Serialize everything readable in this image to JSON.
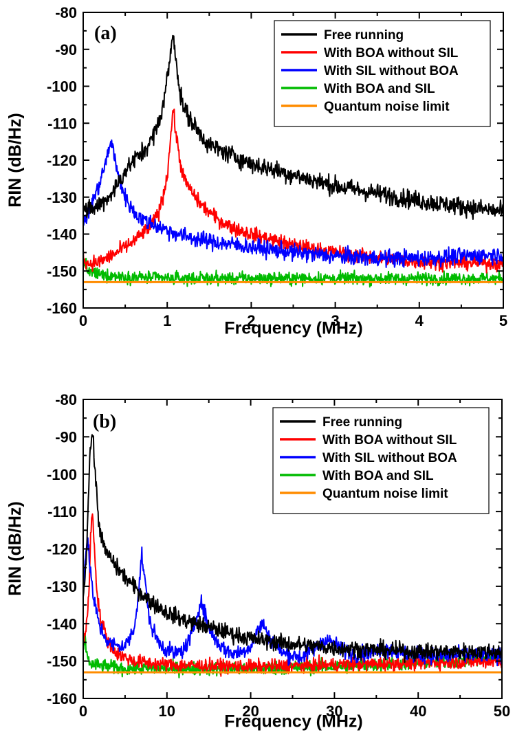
{
  "chart_data": [
    {
      "id": "a",
      "type": "line",
      "panel_label": "(a)",
      "xlabel": "Frequency (MHz)",
      "ylabel": "RIN (dB/Hz)",
      "xlim": [
        0,
        5
      ],
      "ylim": [
        -160,
        -80
      ],
      "xticks": [
        0,
        1,
        2,
        3,
        4,
        5
      ],
      "yticks": [
        -80,
        -90,
        -100,
        -110,
        -120,
        -130,
        -140,
        -150,
        -160
      ],
      "grid": false,
      "legend_position": "top-right",
      "series": [
        {
          "name": "Free running",
          "color": "#000000",
          "noise": 1.8,
          "points": [
            [
              0.0,
              -132
            ],
            [
              0.05,
              -134
            ],
            [
              0.1,
              -133.5
            ],
            [
              0.2,
              -132
            ],
            [
              0.3,
              -130
            ],
            [
              0.4,
              -127
            ],
            [
              0.5,
              -123
            ],
            [
              0.6,
              -120
            ],
            [
              0.7,
              -118
            ],
            [
              0.8,
              -115
            ],
            [
              0.9,
              -110
            ],
            [
              0.95,
              -105
            ],
            [
              1.0,
              -98
            ],
            [
              1.04,
              -91
            ],
            [
              1.07,
              -86
            ],
            [
              1.1,
              -91
            ],
            [
              1.15,
              -102
            ],
            [
              1.2,
              -106
            ],
            [
              1.3,
              -110
            ],
            [
              1.4,
              -113
            ],
            [
              1.5,
              -116
            ],
            [
              1.7,
              -118
            ],
            [
              2.0,
              -121
            ],
            [
              2.5,
              -124
            ],
            [
              3.0,
              -127
            ],
            [
              3.5,
              -129
            ],
            [
              4.0,
              -131
            ],
            [
              4.5,
              -132.5
            ],
            [
              5.0,
              -134
            ]
          ]
        },
        {
          "name": "With BOA without SIL",
          "color": "#ff0000",
          "noise": 1.4,
          "points": [
            [
              0.0,
              -146
            ],
            [
              0.05,
              -148
            ],
            [
              0.2,
              -147.5
            ],
            [
              0.4,
              -145
            ],
            [
              0.6,
              -142
            ],
            [
              0.8,
              -138
            ],
            [
              0.9,
              -134
            ],
            [
              0.95,
              -130
            ],
            [
              1.0,
              -124
            ],
            [
              1.04,
              -114
            ],
            [
              1.07,
              -106
            ],
            [
              1.1,
              -112
            ],
            [
              1.15,
              -120
            ],
            [
              1.2,
              -125
            ],
            [
              1.3,
              -129
            ],
            [
              1.4,
              -132
            ],
            [
              1.6,
              -136
            ],
            [
              1.8,
              -138.5
            ],
            [
              2.0,
              -140
            ],
            [
              2.5,
              -143
            ],
            [
              3.0,
              -145
            ],
            [
              3.5,
              -146.5
            ],
            [
              4.0,
              -147.5
            ],
            [
              5.0,
              -148
            ]
          ]
        },
        {
          "name": "With SIL without BOA",
          "color": "#0000ff",
          "noise": 1.6,
          "points": [
            [
              0.0,
              -136
            ],
            [
              0.05,
              -135
            ],
            [
              0.1,
              -132
            ],
            [
              0.2,
              -126
            ],
            [
              0.3,
              -118
            ],
            [
              0.33,
              -114.5
            ],
            [
              0.36,
              -117
            ],
            [
              0.4,
              -123
            ],
            [
              0.5,
              -130
            ],
            [
              0.6,
              -134
            ],
            [
              0.7,
              -136
            ],
            [
              0.8,
              -137
            ],
            [
              1.0,
              -139
            ],
            [
              1.2,
              -140.5
            ],
            [
              1.5,
              -142
            ],
            [
              2.0,
              -143.5
            ],
            [
              2.5,
              -145
            ],
            [
              3.0,
              -146
            ],
            [
              3.5,
              -146.5
            ],
            [
              4.0,
              -146.5
            ],
            [
              4.5,
              -146
            ],
            [
              5.0,
              -145.5
            ]
          ]
        },
        {
          "name": "With BOA and SIL",
          "color": "#00bb00",
          "noise": 1.2,
          "points": [
            [
              0.0,
              -149
            ],
            [
              0.02,
              -147
            ],
            [
              0.05,
              -150
            ],
            [
              0.2,
              -151
            ],
            [
              0.5,
              -151.5
            ],
            [
              1.0,
              -152
            ],
            [
              2.0,
              -152
            ],
            [
              3.0,
              -152
            ],
            [
              4.0,
              -152
            ],
            [
              5.0,
              -152
            ]
          ]
        },
        {
          "name": "Quantum noise limit",
          "color": "#ff8c00",
          "noise": 0,
          "points": [
            [
              0.0,
              -153
            ],
            [
              5.0,
              -153
            ]
          ]
        }
      ]
    },
    {
      "id": "b",
      "type": "line",
      "panel_label": "(b)",
      "xlabel": "Frequency (MHz)",
      "ylabel": "RIN (dB/Hz)",
      "xlim": [
        0,
        50
      ],
      "ylim": [
        -160,
        -80
      ],
      "xticks": [
        0,
        10,
        20,
        30,
        40,
        50
      ],
      "yticks": [
        -80,
        -90,
        -100,
        -110,
        -120,
        -130,
        -140,
        -150,
        -160
      ],
      "grid": false,
      "legend_position": "top-right",
      "series": [
        {
          "name": "Free running",
          "color": "#000000",
          "noise": 1.6,
          "points": [
            [
              0.0,
              -132
            ],
            [
              0.3,
              -125
            ],
            [
              0.6,
              -108
            ],
            [
              0.8,
              -94
            ],
            [
              1.1,
              -89
            ],
            [
              1.4,
              -98
            ],
            [
              1.8,
              -112
            ],
            [
              2.5,
              -120
            ],
            [
              4,
              -125
            ],
            [
              6,
              -130
            ],
            [
              8,
              -134
            ],
            [
              10,
              -137
            ],
            [
              12,
              -139
            ],
            [
              15,
              -141
            ],
            [
              20,
              -144
            ],
            [
              25,
              -145.5
            ],
            [
              30,
              -146.5
            ],
            [
              35,
              -147
            ],
            [
              40,
              -147.5
            ],
            [
              45,
              -147.5
            ],
            [
              50,
              -147.5
            ]
          ]
        },
        {
          "name": "With BOA without SIL",
          "color": "#ff0000",
          "noise": 1.3,
          "points": [
            [
              0.0,
              -145
            ],
            [
              0.4,
              -141
            ],
            [
              0.7,
              -130
            ],
            [
              0.9,
              -116
            ],
            [
              1.1,
              -110
            ],
            [
              1.3,
              -118
            ],
            [
              1.6,
              -130
            ],
            [
              2.0,
              -138
            ],
            [
              3,
              -145
            ],
            [
              4,
              -148
            ],
            [
              6,
              -150
            ],
            [
              10,
              -151
            ],
            [
              20,
              -151.5
            ],
            [
              30,
              -151
            ],
            [
              40,
              -150.5
            ],
            [
              50,
              -150
            ]
          ]
        },
        {
          "name": "With SIL without BOA",
          "color": "#0000ff",
          "noise": 1.5,
          "points": [
            [
              0.0,
              -132
            ],
            [
              0.3,
              -120
            ],
            [
              0.5,
              -118
            ],
            [
              0.8,
              -124
            ],
            [
              1.2,
              -133
            ],
            [
              2,
              -141
            ],
            [
              3,
              -145
            ],
            [
              4,
              -146
            ],
            [
              5,
              -146
            ],
            [
              6,
              -142
            ],
            [
              6.5,
              -134
            ],
            [
              7,
              -121.5
            ],
            [
              7.5,
              -131
            ],
            [
              8,
              -140
            ],
            [
              9,
              -145
            ],
            [
              10,
              -147
            ],
            [
              11,
              -148
            ],
            [
              12,
              -147
            ],
            [
              13,
              -143
            ],
            [
              14,
              -134
            ],
            [
              14.5,
              -137
            ],
            [
              15,
              -141
            ],
            [
              16,
              -145
            ],
            [
              17,
              -147
            ],
            [
              18,
              -148
            ],
            [
              19,
              -147.5
            ],
            [
              20,
              -146
            ],
            [
              21,
              -141
            ],
            [
              21.5,
              -140
            ],
            [
              22,
              -143
            ],
            [
              23,
              -146
            ],
            [
              24,
              -148
            ],
            [
              26,
              -149
            ],
            [
              28,
              -146
            ],
            [
              29,
              -144
            ],
            [
              30,
              -145.5
            ],
            [
              32,
              -148
            ],
            [
              34,
              -148
            ],
            [
              36,
              -146.5
            ],
            [
              38,
              -148
            ],
            [
              40,
              -148.5
            ],
            [
              45,
              -148.5
            ],
            [
              50,
              -148.5
            ]
          ]
        },
        {
          "name": "With BOA and SIL",
          "color": "#00bb00",
          "noise": 1.3,
          "points": [
            [
              0.0,
              -148
            ],
            [
              0.2,
              -144
            ],
            [
              0.5,
              -149
            ],
            [
              1,
              -151
            ],
            [
              5,
              -152
            ],
            [
              10,
              -152
            ],
            [
              20,
              -152
            ],
            [
              30,
              -151.5
            ],
            [
              40,
              -150.5
            ],
            [
              45,
              -150
            ],
            [
              50,
              -149
            ]
          ]
        },
        {
          "name": "Quantum noise limit",
          "color": "#ff8c00",
          "noise": 0,
          "points": [
            [
              0.0,
              -153
            ],
            [
              50,
              -153
            ]
          ]
        }
      ]
    }
  ]
}
